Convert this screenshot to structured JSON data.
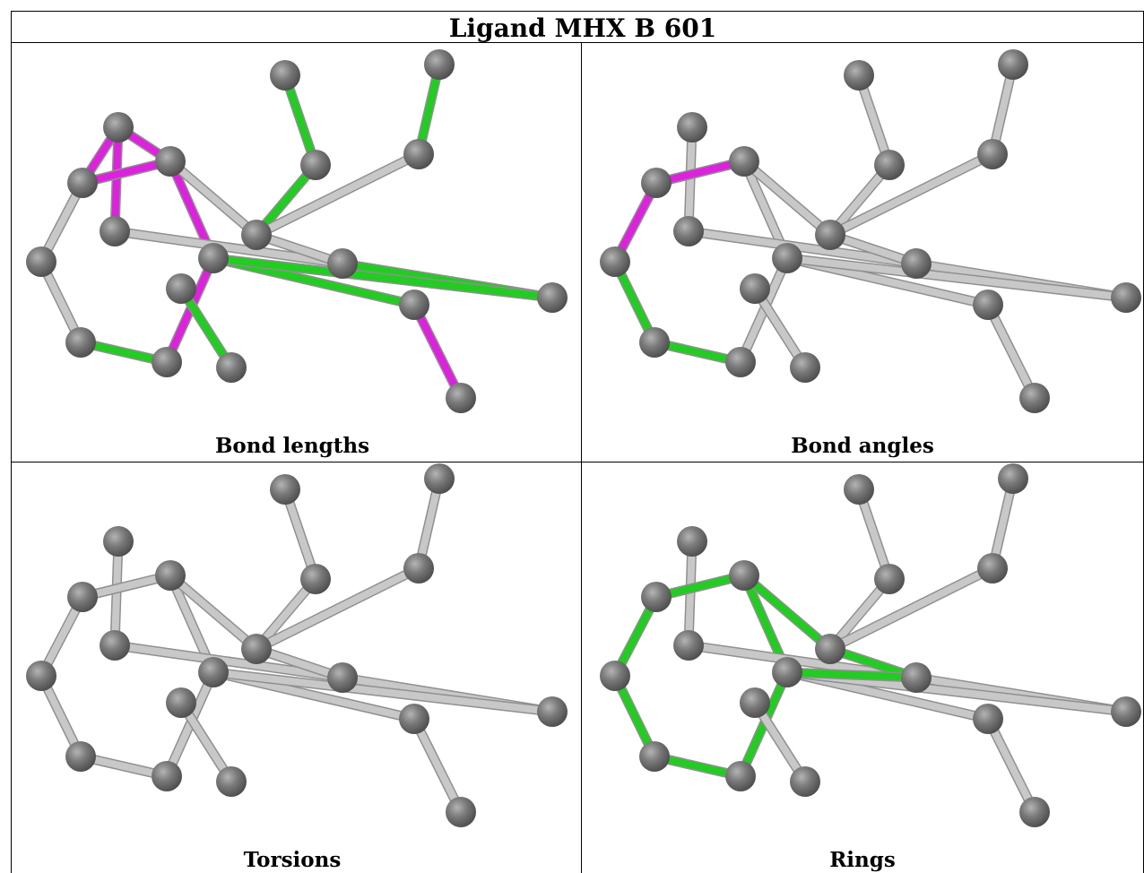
{
  "title": "Ligand MHX B 601",
  "panels": [
    {
      "label": "Bond lengths"
    },
    {
      "label": "Bond angles"
    },
    {
      "label": "Torsions"
    },
    {
      "label": "Rings"
    }
  ],
  "colors": {
    "bond_default": "#c8c8c8",
    "bond_green": "#22cc22",
    "bond_magenta": "#dd22dd",
    "atom": "#707070",
    "border": "#000000"
  }
}
